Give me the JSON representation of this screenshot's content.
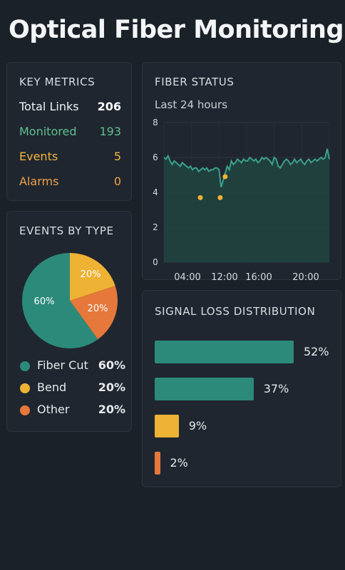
{
  "page_title": "Optical Fiber Monitoring",
  "colors": {
    "teal": "#2c8a7b",
    "yellow": "#eeb234",
    "orange": "#e5783a",
    "green_text": "#5fbf8e",
    "orange_text": "#f0a04a"
  },
  "key_metrics": {
    "title": "KEY METRICS",
    "rows": [
      {
        "label": "Total Links",
        "value": "206"
      },
      {
        "label": "Monitored",
        "value": "193"
      },
      {
        "label": "Events",
        "value": "5"
      },
      {
        "label": "Alarms",
        "value": "0"
      }
    ]
  },
  "events_by_type": {
    "title": "EVENTS BY TYPE",
    "slice_labels": [
      "60%",
      "20%",
      "20%"
    ],
    "legend": [
      {
        "label": "Fiber Cut",
        "value": "60%"
      },
      {
        "label": "Bend",
        "value": "20%"
      },
      {
        "label": "Other",
        "value": "20%"
      }
    ]
  },
  "fiber_status": {
    "title": "FIBER STATUS",
    "subtitle": "Last 24 hours",
    "y_ticks": [
      "8",
      "6",
      "4",
      "2",
      "0"
    ],
    "x_ticks": [
      "04:00",
      "12:00",
      "16:00",
      "20:00"
    ]
  },
  "signal_loss": {
    "title": "SIGNAL LOSS DISTRIBUTION",
    "bars": [
      {
        "label": "52%"
      },
      {
        "label": "37%"
      },
      {
        "label": "9%"
      },
      {
        "label": "2%"
      }
    ]
  },
  "chart_data": [
    {
      "type": "pie",
      "categories": [
        "Fiber Cut",
        "Bend",
        "Other"
      ],
      "values": [
        60,
        20,
        20
      ]
    },
    {
      "type": "line",
      "title": "FIBER STATUS",
      "subtitle": "Last 24 hours",
      "x_ticks": [
        "04:00",
        "12:00",
        "16:00",
        "20:00"
      ],
      "ylim": [
        0,
        8
      ],
      "series": [
        {
          "values": [
            6.0,
            5.9,
            6.1,
            5.8,
            5.6,
            5.8,
            5.7,
            5.6,
            5.5,
            5.7,
            5.6,
            5.5,
            5.4,
            5.5,
            5.3,
            5.4,
            5.4,
            5.2,
            5.3,
            5.4,
            5.3,
            5.4,
            5.2,
            5.3,
            5.3,
            5.4,
            5.4,
            5.3,
            4.3,
            4.7,
            5.1,
            5.5,
            5.3,
            5.8,
            5.6,
            5.7,
            5.9,
            5.8,
            5.7,
            5.9,
            5.8,
            5.8,
            6.0,
            5.9,
            5.8,
            5.9,
            5.7,
            5.8,
            6.0,
            5.9,
            6.0,
            5.9,
            5.8,
            5.6,
            6.0,
            5.9,
            5.5,
            5.4,
            5.6,
            5.8,
            5.9,
            5.8,
            5.6,
            5.7,
            5.9,
            5.7,
            5.8,
            5.9,
            5.7,
            5.6,
            5.8,
            5.9,
            5.7,
            5.8,
            5.9,
            5.8,
            5.9,
            6.0,
            5.9,
            6.0,
            6.5,
            5.9
          ]
        }
      ],
      "events": [
        {
          "x_frac": 0.22,
          "y": 3.7
        },
        {
          "x_frac": 0.34,
          "y": 3.7
        },
        {
          "x_frac": 0.37,
          "y": 4.9
        }
      ]
    },
    {
      "type": "bar",
      "title": "SIGNAL LOSS DISTRIBUTION",
      "orientation": "horizontal",
      "values": [
        52,
        37,
        9,
        2
      ]
    }
  ]
}
